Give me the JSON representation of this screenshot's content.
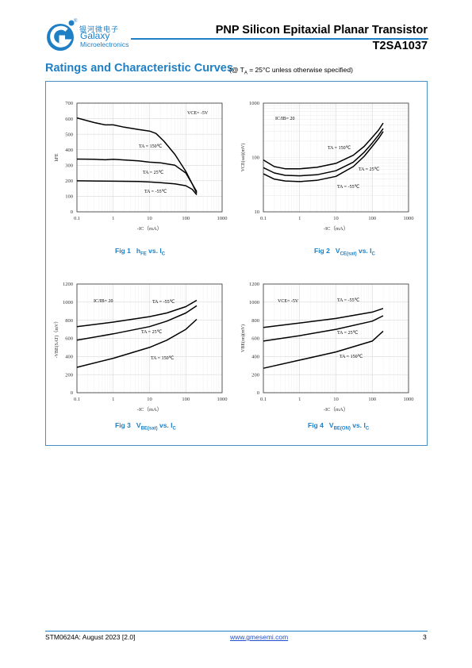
{
  "brand": {
    "logo_letter": "G",
    "name_cn": "银河微电子",
    "name_en": "Galaxy",
    "name_en2": "Microelectronics",
    "registered": "®"
  },
  "header": {
    "title": "PNP Silicon Epitaxial Planar Transistor",
    "part": "T2SA1037"
  },
  "section": {
    "title": "Ratings and Characteristic Curves",
    "note": "(@ TA = 25°C unless otherwise specified)"
  },
  "footer": {
    "left": "STM0624A: August 2023 [2.0]",
    "link": "www.gmesemi.com",
    "page": "3"
  },
  "chart_data": [
    {
      "type": "line",
      "caption": "Fig 1   hFE vs. IC",
      "xlabel": "-IC（mA）",
      "ylabel": "hFE",
      "xscale": "log",
      "xlim": [
        0.1,
        1000
      ],
      "ylim": [
        0,
        700
      ],
      "xticks": [
        "0.1",
        "1",
        "10",
        "100",
        "1000"
      ],
      "yticks": [
        "0",
        "100",
        "200",
        "300",
        "400",
        "500",
        "600",
        "700"
      ],
      "condition": "VCE= -5V",
      "series": [
        {
          "name": "TA = 150℃",
          "x": [
            0.1,
            0.3,
            0.6,
            1,
            2,
            5,
            10,
            15,
            25,
            50,
            100,
            150,
            200
          ],
          "y": [
            605,
            575,
            560,
            560,
            545,
            530,
            520,
            505,
            455,
            370,
            260,
            180,
            130
          ]
        },
        {
          "name": "TA = 25℃",
          "x": [
            0.1,
            0.3,
            0.6,
            1,
            2,
            5,
            10,
            20,
            50,
            100,
            150,
            200
          ],
          "y": [
            340,
            338,
            335,
            338,
            334,
            328,
            320,
            315,
            300,
            250,
            180,
            120
          ]
        },
        {
          "name": "TA = -55℃",
          "x": [
            0.1,
            0.5,
            1,
            5,
            10,
            20,
            50,
            100,
            150,
            200
          ],
          "y": [
            200,
            198,
            197,
            195,
            192,
            188,
            180,
            168,
            145,
            110
          ]
        }
      ]
    },
    {
      "type": "line",
      "caption": "Fig 2   VCE(sat) vs. IC",
      "xlabel": "-IC（mA）",
      "ylabel": "VCE(sat)(mV)",
      "xscale": "log",
      "yscale": "log",
      "xlim": [
        0.1,
        1000
      ],
      "ylim": [
        10,
        1000
      ],
      "xticks": [
        "0.1",
        "1",
        "10",
        "100",
        "1000"
      ],
      "yticks": [
        "10",
        "100",
        "1000"
      ],
      "condition": "IC/IB= 20",
      "series": [
        {
          "name": "TA = 150℃",
          "x": [
            0.1,
            0.2,
            0.4,
            1,
            3,
            10,
            30,
            60,
            100,
            150,
            200
          ],
          "y": [
            90,
            68,
            62,
            62,
            66,
            78,
            110,
            160,
            235,
            320,
            430
          ]
        },
        {
          "name": "TA = 25℃",
          "x": [
            0.1,
            0.2,
            0.4,
            1,
            3,
            10,
            30,
            60,
            100,
            150,
            200
          ],
          "y": [
            65,
            52,
            47,
            46,
            48,
            57,
            82,
            125,
            185,
            260,
            340
          ]
        },
        {
          "name": "TA = -55℃",
          "x": [
            0.1,
            0.2,
            0.4,
            1,
            3,
            10,
            30,
            60,
            100,
            150,
            200
          ],
          "y": [
            50,
            40,
            37,
            36,
            38,
            45,
            68,
            105,
            160,
            225,
            300
          ]
        }
      ]
    },
    {
      "type": "line",
      "caption": "Fig 3   VBE(sat) vs. IC",
      "xlabel": "-IC（mA）",
      "ylabel": "-VBE(SAT)（mV）",
      "xscale": "log",
      "xlim": [
        0.1,
        1000
      ],
      "ylim": [
        0,
        1200
      ],
      "xticks": [
        "0.1",
        "1",
        "10",
        "100",
        "1000"
      ],
      "yticks": [
        "0",
        "200",
        "400",
        "600",
        "800",
        "1000",
        "1200"
      ],
      "condition": "IC/IB= 20",
      "series": [
        {
          "name": "TA = -55℃",
          "x": [
            0.1,
            1,
            10,
            30,
            100,
            200
          ],
          "y": [
            730,
            780,
            840,
            880,
            950,
            1020
          ]
        },
        {
          "name": "TA = 25℃",
          "x": [
            0.1,
            1,
            10,
            30,
            100,
            200
          ],
          "y": [
            580,
            650,
            730,
            790,
            880,
            960
          ]
        },
        {
          "name": "TA = 150℃",
          "x": [
            0.1,
            1,
            10,
            30,
            100,
            200
          ],
          "y": [
            280,
            380,
            500,
            580,
            700,
            810
          ]
        }
      ]
    },
    {
      "type": "line",
      "caption": "Fig 4   VBE(ON) vs. IC",
      "xlabel": "-IC（mA）",
      "ylabel": "VBE(on)(mV)",
      "xscale": "log",
      "xlim": [
        0.1,
        1000
      ],
      "ylim": [
        0,
        1200
      ],
      "xticks": [
        "0.1",
        "1",
        "10",
        "100",
        "1000"
      ],
      "yticks": [
        "0",
        "200",
        "400",
        "600",
        "800",
        "1000",
        "1200"
      ],
      "condition": "VCE= -5V",
      "series": [
        {
          "name": "TA = -55℃",
          "x": [
            0.1,
            1,
            10,
            100,
            200
          ],
          "y": [
            720,
            770,
            820,
            890,
            930
          ]
        },
        {
          "name": "TA = 25℃",
          "x": [
            0.1,
            1,
            10,
            100,
            200
          ],
          "y": [
            570,
            630,
            700,
            790,
            850
          ]
        },
        {
          "name": "TA = 150℃",
          "x": [
            0.1,
            1,
            10,
            100,
            200
          ],
          "y": [
            270,
            360,
            450,
            570,
            680
          ]
        }
      ]
    }
  ]
}
